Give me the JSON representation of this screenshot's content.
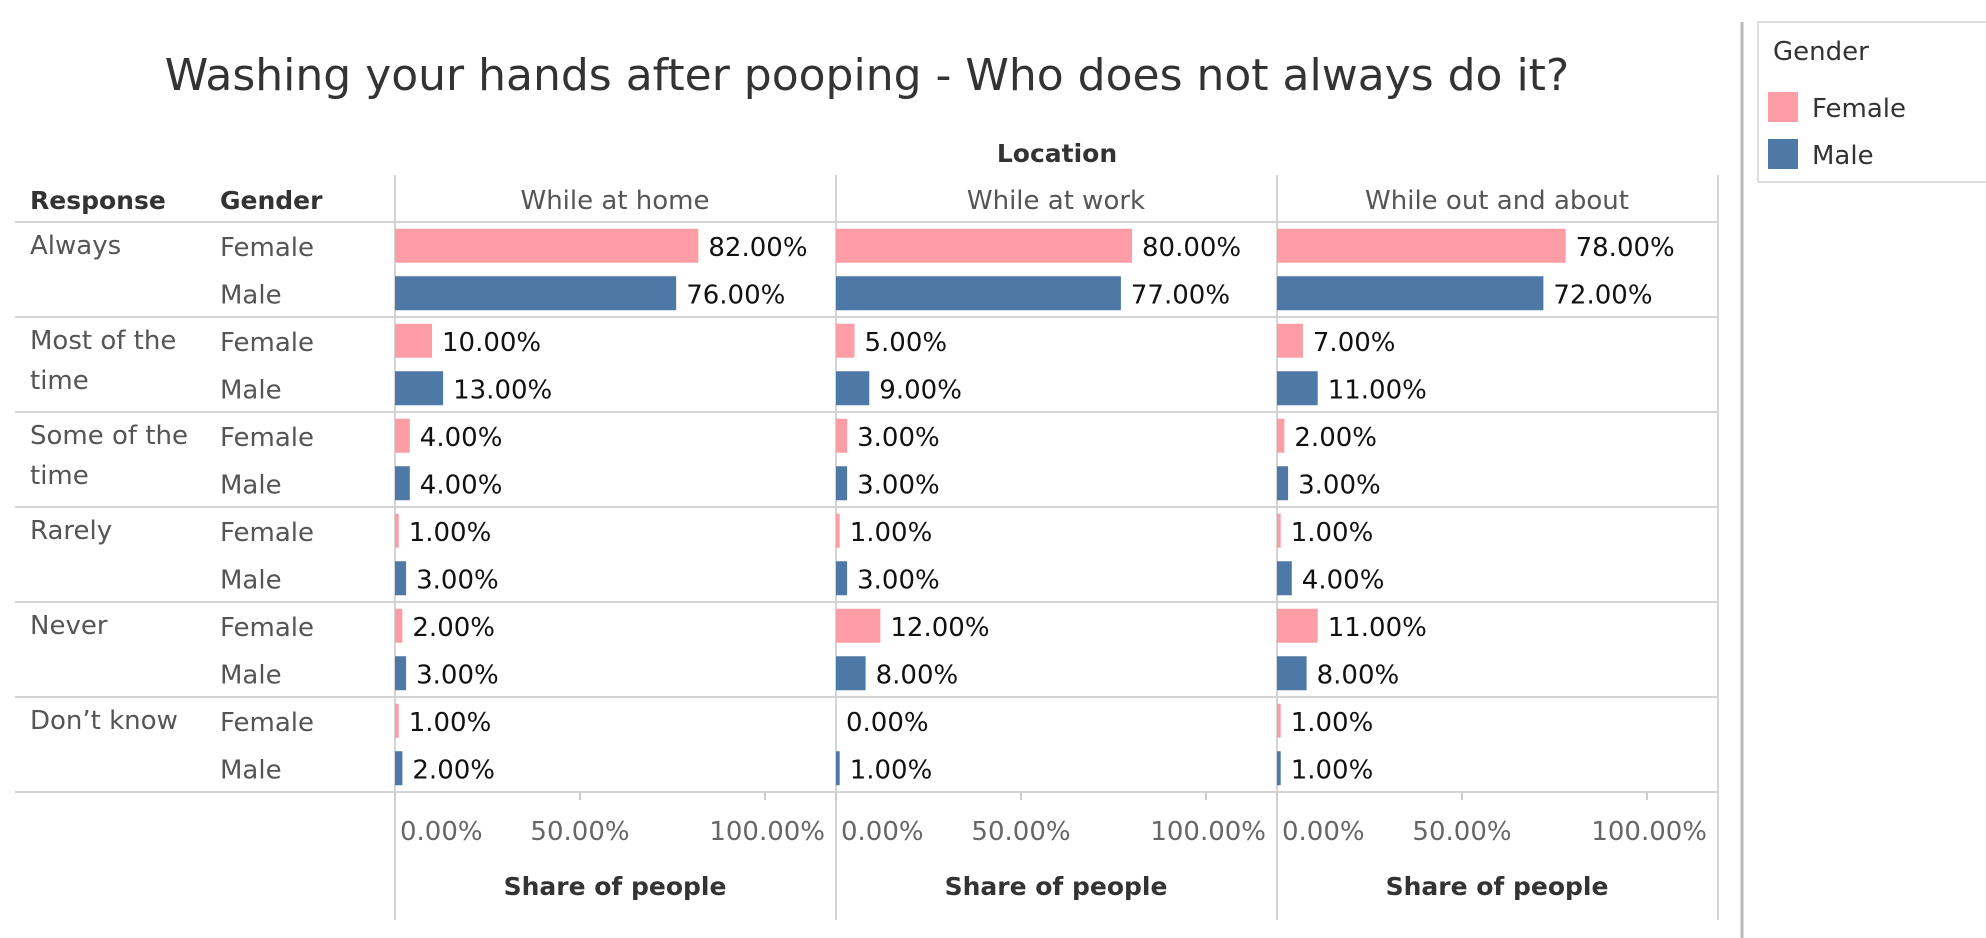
{
  "chart_data": {
    "type": "bar",
    "title": "Washing your hands after pooping - Who does not always do it?",
    "column_group_label": "Location",
    "row_header_response": "Response",
    "row_header_gender": "Gender",
    "xlabel": "Share of people",
    "xlim": [
      0,
      100
    ],
    "x_ticks": [
      "0.00%",
      "50.00%",
      "100.00%"
    ],
    "locations": [
      "While at home",
      "While at work",
      "While out and about"
    ],
    "responses": [
      {
        "label_lines": [
          "Always"
        ],
        "values": {
          "Female": [
            82,
            80,
            78
          ],
          "Male": [
            76,
            77,
            72
          ]
        },
        "labels": {
          "Female": [
            "82.00%",
            "80.00%",
            "78.00%"
          ],
          "Male": [
            "76.00%",
            "77.00%",
            "72.00%"
          ]
        }
      },
      {
        "label_lines": [
          "Most of the",
          "time"
        ],
        "values": {
          "Female": [
            10,
            5,
            7
          ],
          "Male": [
            13,
            9,
            11
          ]
        },
        "labels": {
          "Female": [
            "10.00%",
            "5.00%",
            "7.00%"
          ],
          "Male": [
            "13.00%",
            "9.00%",
            "11.00%"
          ]
        }
      },
      {
        "label_lines": [
          "Some of the",
          "time"
        ],
        "values": {
          "Female": [
            4,
            3,
            2
          ],
          "Male": [
            4,
            3,
            3
          ]
        },
        "labels": {
          "Female": [
            "4.00%",
            "3.00%",
            "2.00%"
          ],
          "Male": [
            "4.00%",
            "3.00%",
            "3.00%"
          ]
        }
      },
      {
        "label_lines": [
          "Rarely"
        ],
        "values": {
          "Female": [
            1,
            1,
            1
          ],
          "Male": [
            3,
            3,
            4
          ]
        },
        "labels": {
          "Female": [
            "1.00%",
            "1.00%",
            "1.00%"
          ],
          "Male": [
            "3.00%",
            "3.00%",
            "4.00%"
          ]
        }
      },
      {
        "label_lines": [
          "Never"
        ],
        "values": {
          "Female": [
            2,
            12,
            11
          ],
          "Male": [
            3,
            8,
            8
          ]
        },
        "labels": {
          "Female": [
            "2.00%",
            "12.00%",
            "11.00%"
          ],
          "Male": [
            "3.00%",
            "8.00%",
            "8.00%"
          ]
        }
      },
      {
        "label_lines": [
          "Don’t know"
        ],
        "values": {
          "Female": [
            1,
            0,
            1
          ],
          "Male": [
            2,
            1,
            1
          ]
        },
        "labels": {
          "Female": [
            "1.00%",
            "0.00%",
            "1.00%"
          ],
          "Male": [
            "2.00%",
            "1.00%",
            "1.00%"
          ]
        }
      }
    ],
    "genders": [
      "Female",
      "Male"
    ],
    "legend": {
      "title": "Gender",
      "placement": "top-right",
      "items": [
        {
          "name": "Female",
          "color": "#FF9DA7"
        },
        {
          "name": "Male",
          "color": "#4E79A7"
        }
      ]
    },
    "grid": false
  }
}
